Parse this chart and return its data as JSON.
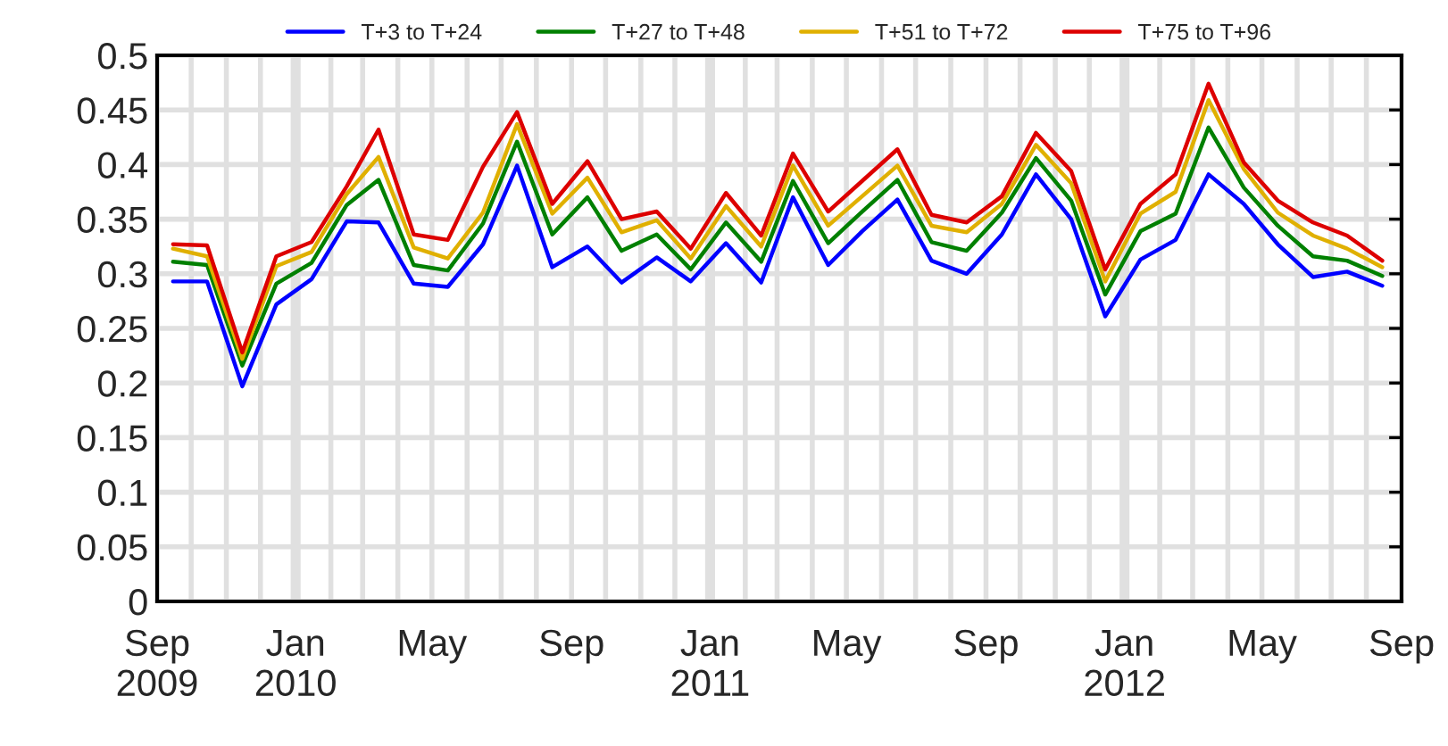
{
  "chart_data": {
    "type": "line",
    "x": [
      "2009-09-15",
      "2009-10-15",
      "2009-11-15",
      "2009-12-15",
      "2010-01-15",
      "2010-02-15",
      "2010-03-15",
      "2010-04-15",
      "2010-05-15",
      "2010-06-15",
      "2010-07-15",
      "2010-08-15",
      "2010-09-15",
      "2010-10-15",
      "2010-11-15",
      "2010-12-15",
      "2011-01-15",
      "2011-02-15",
      "2011-03-15",
      "2011-04-15",
      "2011-05-15",
      "2011-06-15",
      "2011-07-15",
      "2011-08-15",
      "2011-09-15",
      "2011-10-15",
      "2011-11-15",
      "2011-12-15",
      "2012-01-15",
      "2012-02-15",
      "2012-03-15",
      "2012-04-15",
      "2012-05-15",
      "2012-06-15",
      "2012-07-15",
      "2012-08-15"
    ],
    "series": [
      {
        "name": "T+3 to T+24",
        "color": "#0000ff",
        "values": [
          0.293,
          0.293,
          0.197,
          0.272,
          0.295,
          0.348,
          0.347,
          0.291,
          0.288,
          0.327,
          0.399,
          0.306,
          0.325,
          0.292,
          0.315,
          0.293,
          0.328,
          0.292,
          0.37,
          0.308,
          0.339,
          0.368,
          0.312,
          0.3,
          0.336,
          0.391,
          0.35,
          0.261,
          0.313,
          0.331,
          0.391,
          0.364,
          0.327,
          0.297,
          0.302,
          0.289
        ]
      },
      {
        "name": "T+27 to T+48",
        "color": "#008000",
        "values": [
          0.311,
          0.308,
          0.216,
          0.291,
          0.31,
          0.363,
          0.386,
          0.308,
          0.303,
          0.346,
          0.421,
          0.336,
          0.37,
          0.321,
          0.336,
          0.304,
          0.347,
          0.311,
          0.385,
          0.328,
          0.357,
          0.386,
          0.329,
          0.321,
          0.356,
          0.406,
          0.367,
          0.281,
          0.339,
          0.355,
          0.434,
          0.379,
          0.344,
          0.316,
          0.312,
          0.298
        ]
      },
      {
        "name": "T+51 to T+72",
        "color": "#e0b000",
        "values": [
          0.323,
          0.316,
          0.222,
          0.307,
          0.32,
          0.373,
          0.407,
          0.324,
          0.314,
          0.356,
          0.437,
          0.355,
          0.388,
          0.338,
          0.349,
          0.314,
          0.362,
          0.325,
          0.399,
          0.344,
          0.371,
          0.399,
          0.344,
          0.338,
          0.364,
          0.418,
          0.383,
          0.293,
          0.355,
          0.375,
          0.459,
          0.396,
          0.356,
          0.335,
          0.323,
          0.306
        ]
      },
      {
        "name": "T+75 to T+96",
        "color": "#dd0000",
        "values": [
          0.327,
          0.326,
          0.228,
          0.316,
          0.329,
          0.38,
          0.432,
          0.336,
          0.331,
          0.398,
          0.448,
          0.364,
          0.403,
          0.35,
          0.357,
          0.323,
          0.374,
          0.335,
          0.41,
          0.357,
          0.385,
          0.414,
          0.354,
          0.347,
          0.371,
          0.429,
          0.394,
          0.304,
          0.364,
          0.391,
          0.474,
          0.402,
          0.367,
          0.347,
          0.335,
          0.312
        ]
      }
    ],
    "xlim": [
      "2009-09-01",
      "2012-09-01"
    ],
    "xticks": [
      {
        "value": "2009-09-01",
        "label": "Sep\n2009"
      },
      {
        "value": "2009-10-01",
        "label": null
      },
      {
        "value": "2009-11-01",
        "label": null
      },
      {
        "value": "2009-12-01",
        "label": null
      },
      {
        "value": "2010-01-01",
        "label": "Jan\n2010"
      },
      {
        "value": "2010-02-01",
        "label": null
      },
      {
        "value": "2010-03-01",
        "label": null
      },
      {
        "value": "2010-04-01",
        "label": null
      },
      {
        "value": "2010-05-01",
        "label": "May"
      },
      {
        "value": "2010-06-01",
        "label": null
      },
      {
        "value": "2010-07-01",
        "label": null
      },
      {
        "value": "2010-08-01",
        "label": null
      },
      {
        "value": "2010-09-01",
        "label": "Sep"
      },
      {
        "value": "2010-10-01",
        "label": null
      },
      {
        "value": "2010-11-01",
        "label": null
      },
      {
        "value": "2010-12-01",
        "label": null
      },
      {
        "value": "2011-01-01",
        "label": "Jan\n2011"
      },
      {
        "value": "2011-02-01",
        "label": null
      },
      {
        "value": "2011-03-01",
        "label": null
      },
      {
        "value": "2011-04-01",
        "label": null
      },
      {
        "value": "2011-05-01",
        "label": "May"
      },
      {
        "value": "2011-06-01",
        "label": null
      },
      {
        "value": "2011-07-01",
        "label": null
      },
      {
        "value": "2011-08-01",
        "label": null
      },
      {
        "value": "2011-09-01",
        "label": "Sep"
      },
      {
        "value": "2011-10-01",
        "label": null
      },
      {
        "value": "2011-11-01",
        "label": null
      },
      {
        "value": "2011-12-01",
        "label": null
      },
      {
        "value": "2012-01-01",
        "label": "Jan\n2012"
      },
      {
        "value": "2012-02-01",
        "label": null
      },
      {
        "value": "2012-03-01",
        "label": null
      },
      {
        "value": "2012-04-01",
        "label": null
      },
      {
        "value": "2012-05-01",
        "label": "May"
      },
      {
        "value": "2012-06-01",
        "label": null
      },
      {
        "value": "2012-07-01",
        "label": null
      },
      {
        "value": "2012-08-01",
        "label": null
      },
      {
        "value": "2012-09-01",
        "label": "Sep"
      }
    ],
    "ylim": [
      0,
      0.5
    ],
    "yticks": [
      0,
      0.05,
      0.1,
      0.15,
      0.2,
      0.25,
      0.3,
      0.35,
      0.4,
      0.45,
      0.5
    ],
    "grid": true,
    "legend": "top",
    "marker": "none",
    "line_style": "solid"
  }
}
